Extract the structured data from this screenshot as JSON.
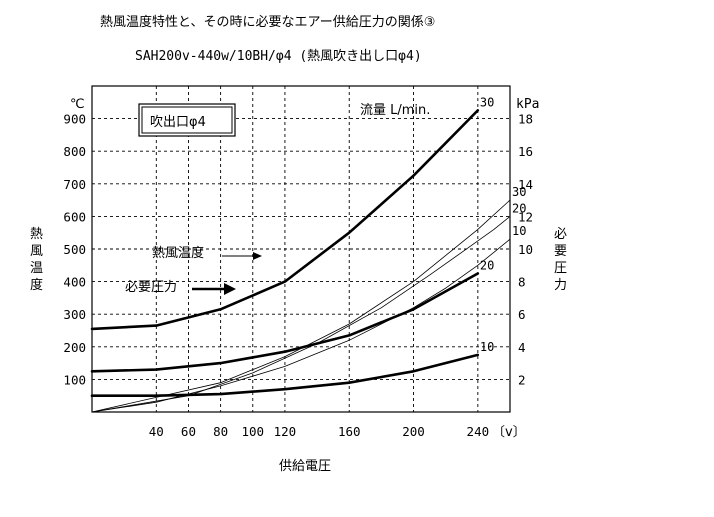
{
  "chart_data": {
    "type": "line",
    "title": "熱風温度特性と、その時に必要なエアー供給圧力の関係③",
    "subtitle": "SAH200v-440w/10BH/φ4 (熱風吹き出し口φ4)",
    "inset_label": "吹出口φ4",
    "xlabel": "供給電圧",
    "x_unit": "〔v〕",
    "ylabel_left": "熱風温度",
    "y_left_unit": "℃",
    "ylabel_right": "必要圧力",
    "y_right_unit": "kPa",
    "flow_label": "流量 L/min.",
    "xlim": [
      0,
      260
    ],
    "ylim_left": [
      0,
      1000
    ],
    "ylim_right": [
      0,
      20
    ],
    "x_ticks": [
      40,
      60,
      80,
      100,
      120,
      160,
      200,
      240
    ],
    "y_left_ticks": [
      100,
      200,
      300,
      400,
      500,
      600,
      700,
      800,
      900
    ],
    "y_right_ticks": [
      2,
      4,
      6,
      8,
      10,
      12,
      14,
      16,
      18
    ],
    "annotations": {
      "temperature": "熱風温度",
      "pressure": "必要圧力"
    },
    "series": [
      {
        "name": "10",
        "group": "temperature",
        "axis": "left",
        "x": [
          0,
          40,
          80,
          120,
          160,
          200,
          220,
          240,
          250,
          260
        ],
        "y": [
          0,
          30,
          80,
          140,
          220,
          320,
          380,
          450,
          490,
          530
        ]
      },
      {
        "name": "20",
        "group": "temperature",
        "axis": "left",
        "x": [
          0,
          60,
          100,
          140,
          180,
          210,
          230,
          250,
          260
        ],
        "y": [
          0,
          50,
          120,
          210,
          320,
          420,
          490,
          560,
          600
        ]
      },
      {
        "name": "30",
        "group": "temperature",
        "axis": "left",
        "x": [
          0,
          80,
          120,
          160,
          200,
          240,
          260
        ],
        "y": [
          0,
          90,
          170,
          270,
          400,
          560,
          650
        ]
      },
      {
        "name": "30",
        "group": "pressure",
        "axis": "right",
        "x": [
          0,
          40,
          80,
          120,
          160,
          200,
          240
        ],
        "y": [
          5.1,
          5.3,
          6.3,
          8.0,
          11.0,
          14.5,
          18.5
        ]
      },
      {
        "name": "20",
        "group": "pressure",
        "axis": "right",
        "x": [
          0,
          40,
          80,
          120,
          160,
          200,
          240
        ],
        "y": [
          2.5,
          2.6,
          3.0,
          3.7,
          4.7,
          6.3,
          8.5
        ]
      },
      {
        "name": "10",
        "group": "pressure",
        "axis": "right",
        "x": [
          0,
          40,
          80,
          120,
          160,
          200,
          240
        ],
        "y": [
          1.0,
          1.0,
          1.1,
          1.4,
          1.8,
          2.5,
          3.5
        ]
      }
    ]
  }
}
